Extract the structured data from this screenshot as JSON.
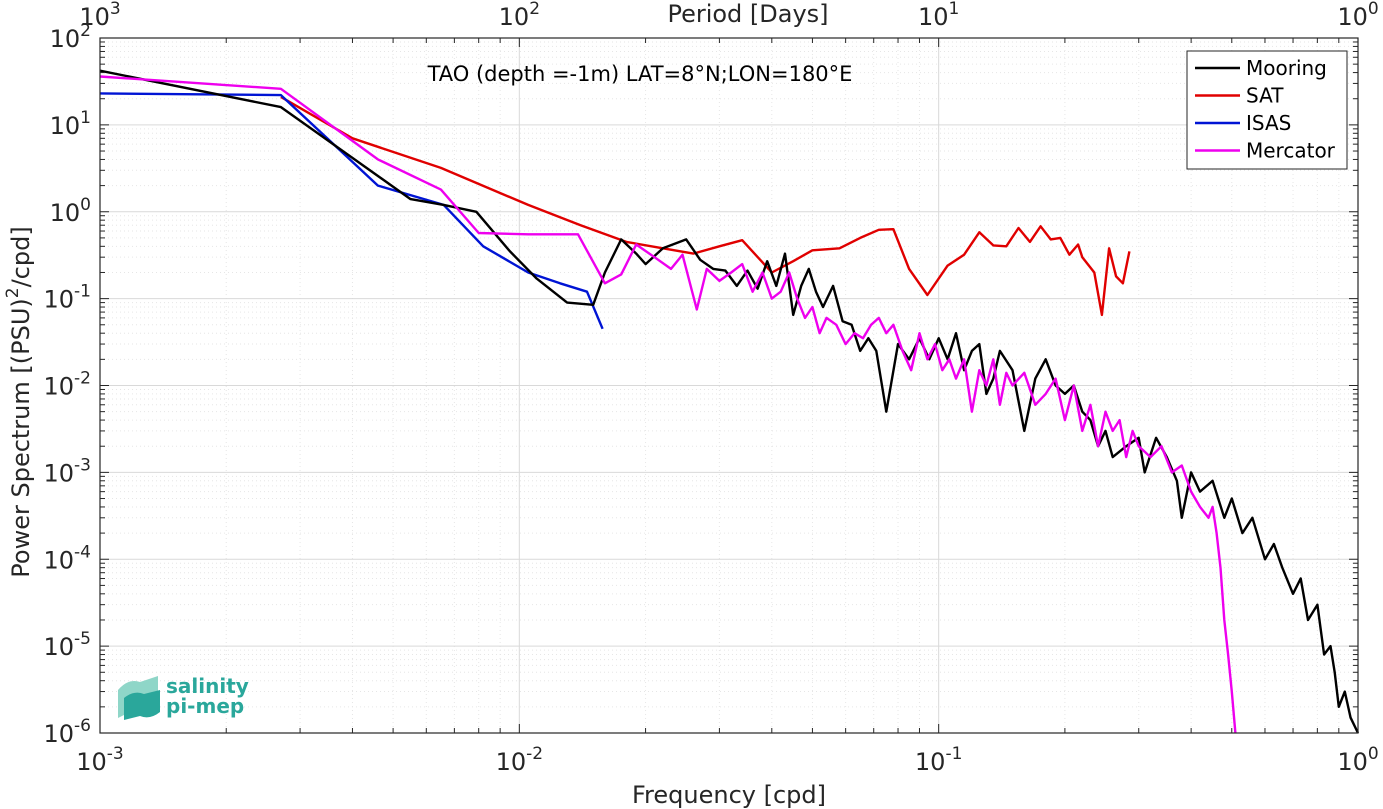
{
  "chart_data": {
    "type": "line",
    "annotation": "TAO (depth =-1m) LAT=8°N;LON=180°E",
    "xlabel": "Frequency [cpd]",
    "ylabel_main": "Power Spectrum [(PSU)",
    "ylabel_sup": "2",
    "ylabel_end": "/cpd]",
    "top_xlabel": "Period [Days]",
    "x_scale": "log",
    "y_scale": "log",
    "xlim": [
      0.001,
      1
    ],
    "ylim": [
      1e-06,
      100
    ],
    "grid": true,
    "legend_position": "top-right",
    "x_ticks": [
      {
        "value": 0.001,
        "base": "10",
        "exp": "-3"
      },
      {
        "value": 0.01,
        "base": "10",
        "exp": "-2"
      },
      {
        "value": 0.1,
        "base": "10",
        "exp": "-1"
      },
      {
        "value": 1,
        "base": "10",
        "exp": "0"
      }
    ],
    "top_ticks": [
      {
        "value": 0.001,
        "base": "10",
        "exp": "3"
      },
      {
        "value": 0.01,
        "base": "10",
        "exp": "2"
      },
      {
        "value": 0.1,
        "base": "10",
        "exp": "1"
      },
      {
        "value": 1,
        "base": "10",
        "exp": "0"
      }
    ],
    "y_ticks": [
      {
        "value": 100,
        "base": "10",
        "exp": "2"
      },
      {
        "value": 10,
        "base": "10",
        "exp": "1"
      },
      {
        "value": 1,
        "base": "10",
        "exp": "0"
      },
      {
        "value": 0.1,
        "base": "10",
        "exp": "-1"
      },
      {
        "value": 0.01,
        "base": "10",
        "exp": "-2"
      },
      {
        "value": 0.001,
        "base": "10",
        "exp": "-3"
      },
      {
        "value": 0.0001,
        "base": "10",
        "exp": "-4"
      },
      {
        "value": 1e-05,
        "base": "10",
        "exp": "-5"
      },
      {
        "value": 1e-06,
        "base": "10",
        "exp": "-6"
      }
    ],
    "series": [
      {
        "name": "Mooring",
        "color": "#000000",
        "points": [
          [
            0.001,
            42
          ],
          [
            0.0027,
            16
          ],
          [
            0.0055,
            1.4
          ],
          [
            0.0066,
            1.2
          ],
          [
            0.0079,
            1.0
          ],
          [
            0.0095,
            0.35
          ],
          [
            0.011,
            0.17
          ],
          [
            0.013,
            0.09
          ],
          [
            0.015,
            0.085
          ],
          [
            0.016,
            0.2
          ],
          [
            0.0175,
            0.48
          ],
          [
            0.019,
            0.33
          ],
          [
            0.02,
            0.25
          ],
          [
            0.022,
            0.38
          ],
          [
            0.025,
            0.48
          ],
          [
            0.027,
            0.28
          ],
          [
            0.029,
            0.22
          ],
          [
            0.031,
            0.21
          ],
          [
            0.033,
            0.14
          ],
          [
            0.035,
            0.21
          ],
          [
            0.037,
            0.13
          ],
          [
            0.039,
            0.27
          ],
          [
            0.041,
            0.14
          ],
          [
            0.043,
            0.33
          ],
          [
            0.045,
            0.065
          ],
          [
            0.047,
            0.14
          ],
          [
            0.049,
            0.22
          ],
          [
            0.051,
            0.12
          ],
          [
            0.053,
            0.08
          ],
          [
            0.056,
            0.14
          ],
          [
            0.059,
            0.055
          ],
          [
            0.062,
            0.05
          ],
          [
            0.065,
            0.025
          ],
          [
            0.068,
            0.035
          ],
          [
            0.071,
            0.025
          ],
          [
            0.075,
            0.005
          ],
          [
            0.08,
            0.03
          ],
          [
            0.085,
            0.02
          ],
          [
            0.09,
            0.035
          ],
          [
            0.095,
            0.02
          ],
          [
            0.1,
            0.035
          ],
          [
            0.105,
            0.02
          ],
          [
            0.11,
            0.04
          ],
          [
            0.115,
            0.015
          ],
          [
            0.12,
            0.025
          ],
          [
            0.125,
            0.03
          ],
          [
            0.13,
            0.008
          ],
          [
            0.135,
            0.012
          ],
          [
            0.14,
            0.025
          ],
          [
            0.15,
            0.015
          ],
          [
            0.16,
            0.003
          ],
          [
            0.17,
            0.012
          ],
          [
            0.18,
            0.02
          ],
          [
            0.19,
            0.01
          ],
          [
            0.2,
            0.008
          ],
          [
            0.21,
            0.01
          ],
          [
            0.22,
            0.005
          ],
          [
            0.23,
            0.004
          ],
          [
            0.24,
            0.002
          ],
          [
            0.25,
            0.003
          ],
          [
            0.26,
            0.0015
          ],
          [
            0.28,
            0.002
          ],
          [
            0.3,
            0.0025
          ],
          [
            0.31,
            0.001
          ],
          [
            0.33,
            0.0025
          ],
          [
            0.35,
            0.0015
          ],
          [
            0.37,
            0.0008
          ],
          [
            0.38,
            0.0003
          ],
          [
            0.4,
            0.001
          ],
          [
            0.42,
            0.0006
          ],
          [
            0.45,
            0.0008
          ],
          [
            0.48,
            0.0003
          ],
          [
            0.5,
            0.0005
          ],
          [
            0.53,
            0.0002
          ],
          [
            0.56,
            0.0003
          ],
          [
            0.6,
            0.0001
          ],
          [
            0.63,
            0.00015
          ],
          [
            0.66,
            8e-05
          ],
          [
            0.7,
            4e-05
          ],
          [
            0.73,
            6e-05
          ],
          [
            0.76,
            2e-05
          ],
          [
            0.8,
            3e-05
          ],
          [
            0.83,
            8e-06
          ],
          [
            0.86,
            1e-05
          ],
          [
            0.88,
            5e-06
          ],
          [
            0.9,
            2e-06
          ],
          [
            0.93,
            3e-06
          ],
          [
            0.96,
            1.5e-06
          ],
          [
            1.0,
            1e-06
          ]
        ]
      },
      {
        "name": "SAT",
        "color": "#e00000",
        "points": [
          [
            0.0027,
            21
          ],
          [
            0.004,
            7
          ],
          [
            0.0065,
            3.2
          ],
          [
            0.0105,
            1.2
          ],
          [
            0.014,
            0.7
          ],
          [
            0.018,
            0.45
          ],
          [
            0.022,
            0.38
          ],
          [
            0.026,
            0.33
          ],
          [
            0.03,
            0.4
          ],
          [
            0.034,
            0.47
          ],
          [
            0.04,
            0.2
          ],
          [
            0.045,
            0.27
          ],
          [
            0.05,
            0.36
          ],
          [
            0.058,
            0.38
          ],
          [
            0.065,
            0.5
          ],
          [
            0.072,
            0.62
          ],
          [
            0.078,
            0.63
          ],
          [
            0.085,
            0.22
          ],
          [
            0.094,
            0.11
          ],
          [
            0.105,
            0.24
          ],
          [
            0.115,
            0.32
          ],
          [
            0.125,
            0.58
          ],
          [
            0.135,
            0.41
          ],
          [
            0.145,
            0.4
          ],
          [
            0.155,
            0.65
          ],
          [
            0.165,
            0.45
          ],
          [
            0.175,
            0.68
          ],
          [
            0.185,
            0.48
          ],
          [
            0.195,
            0.5
          ],
          [
            0.205,
            0.32
          ],
          [
            0.215,
            0.42
          ],
          [
            0.22,
            0.3
          ],
          [
            0.235,
            0.2
          ],
          [
            0.245,
            0.065
          ],
          [
            0.255,
            0.38
          ],
          [
            0.265,
            0.18
          ],
          [
            0.275,
            0.15
          ],
          [
            0.285,
            0.35
          ]
        ]
      },
      {
        "name": "ISAS",
        "color": "#0014d4",
        "points": [
          [
            0.001,
            23
          ],
          [
            0.0027,
            22
          ],
          [
            0.0046,
            2.0
          ],
          [
            0.0066,
            1.2
          ],
          [
            0.0082,
            0.4
          ],
          [
            0.0105,
            0.2
          ],
          [
            0.0125,
            0.15
          ],
          [
            0.0145,
            0.12
          ],
          [
            0.0158,
            0.045
          ]
        ]
      },
      {
        "name": "Mercator",
        "color": "#ee00ee",
        "points": [
          [
            0.001,
            36
          ],
          [
            0.0027,
            26
          ],
          [
            0.0046,
            4.0
          ],
          [
            0.0065,
            1.8
          ],
          [
            0.008,
            0.57
          ],
          [
            0.0105,
            0.55
          ],
          [
            0.0138,
            0.55
          ],
          [
            0.016,
            0.15
          ],
          [
            0.0175,
            0.19
          ],
          [
            0.019,
            0.42
          ],
          [
            0.021,
            0.3
          ],
          [
            0.023,
            0.22
          ],
          [
            0.0245,
            0.32
          ],
          [
            0.0265,
            0.075
          ],
          [
            0.028,
            0.22
          ],
          [
            0.03,
            0.16
          ],
          [
            0.032,
            0.2
          ],
          [
            0.034,
            0.25
          ],
          [
            0.036,
            0.12
          ],
          [
            0.038,
            0.2
          ],
          [
            0.04,
            0.1
          ],
          [
            0.042,
            0.12
          ],
          [
            0.044,
            0.2
          ],
          [
            0.046,
            0.1
          ],
          [
            0.048,
            0.06
          ],
          [
            0.05,
            0.08
          ],
          [
            0.052,
            0.04
          ],
          [
            0.054,
            0.06
          ],
          [
            0.057,
            0.05
          ],
          [
            0.06,
            0.03
          ],
          [
            0.063,
            0.04
          ],
          [
            0.066,
            0.035
          ],
          [
            0.069,
            0.05
          ],
          [
            0.072,
            0.06
          ],
          [
            0.075,
            0.04
          ],
          [
            0.078,
            0.05
          ],
          [
            0.082,
            0.025
          ],
          [
            0.086,
            0.015
          ],
          [
            0.09,
            0.04
          ],
          [
            0.094,
            0.02
          ],
          [
            0.098,
            0.03
          ],
          [
            0.102,
            0.015
          ],
          [
            0.106,
            0.02
          ],
          [
            0.11,
            0.012
          ],
          [
            0.115,
            0.02
          ],
          [
            0.12,
            0.005
          ],
          [
            0.125,
            0.015
          ],
          [
            0.13,
            0.01
          ],
          [
            0.135,
            0.02
          ],
          [
            0.14,
            0.006
          ],
          [
            0.145,
            0.014
          ],
          [
            0.15,
            0.01
          ],
          [
            0.16,
            0.014
          ],
          [
            0.17,
            0.006
          ],
          [
            0.18,
            0.008
          ],
          [
            0.19,
            0.012
          ],
          [
            0.2,
            0.004
          ],
          [
            0.21,
            0.01
          ],
          [
            0.22,
            0.003
          ],
          [
            0.23,
            0.006
          ],
          [
            0.24,
            0.002
          ],
          [
            0.25,
            0.005
          ],
          [
            0.26,
            0.003
          ],
          [
            0.27,
            0.004
          ],
          [
            0.28,
            0.0015
          ],
          [
            0.29,
            0.003
          ],
          [
            0.3,
            0.002
          ],
          [
            0.32,
            0.0015
          ],
          [
            0.34,
            0.002
          ],
          [
            0.36,
            0.001
          ],
          [
            0.38,
            0.0012
          ],
          [
            0.4,
            0.0006
          ],
          [
            0.42,
            0.0004
          ],
          [
            0.44,
            0.0003
          ],
          [
            0.45,
            0.0004
          ],
          [
            0.46,
            0.0002
          ],
          [
            0.47,
            8e-05
          ],
          [
            0.48,
            2e-05
          ],
          [
            0.49,
            8e-06
          ],
          [
            0.5,
            3e-06
          ],
          [
            0.51,
            1e-06
          ]
        ]
      }
    ]
  },
  "logo": {
    "line1": "salinity",
    "line2": "pi-mep"
  }
}
